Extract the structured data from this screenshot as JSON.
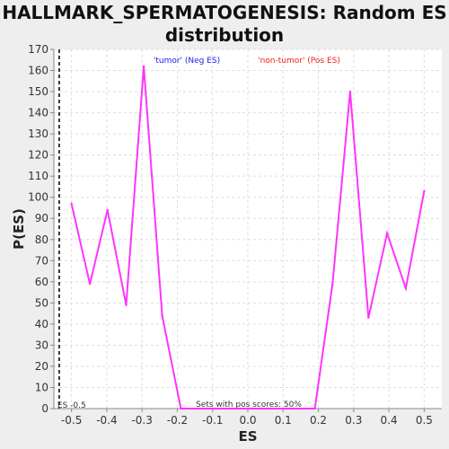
{
  "chart_data": {
    "type": "line",
    "title": "HALLMARK_SPERMATOGENESIS: Random ES\ndistribution",
    "xlabel": "ES",
    "ylabel": "P(ES)",
    "xlim": [
      -0.55,
      0.55
    ],
    "ylim": [
      0,
      170
    ],
    "x_ticks": [
      -0.5,
      -0.4,
      -0.3,
      -0.2,
      -0.1,
      0.0,
      0.1,
      0.2,
      0.3,
      0.4,
      0.5
    ],
    "x_tick_labels": [
      "-0.5",
      "-0.4",
      "-0.3",
      "-0.2",
      "-0.1",
      "0.0",
      "0.1",
      "0.2",
      "0.3",
      "0.4",
      "0.5"
    ],
    "y_ticks": [
      0,
      10,
      20,
      30,
      40,
      50,
      60,
      70,
      80,
      90,
      100,
      110,
      120,
      130,
      140,
      150,
      160,
      170
    ],
    "grid": true,
    "series": [
      {
        "color": "#ff33ff",
        "x": [
          -0.5,
          -0.448,
          -0.398,
          -0.345,
          -0.295,
          -0.243,
          -0.19,
          -0.14,
          -0.09,
          -0.04,
          0.01,
          0.06,
          0.11,
          0.16,
          0.19,
          0.24,
          0.29,
          0.342,
          0.395,
          0.448,
          0.5
        ],
        "y": [
          97,
          59,
          94,
          49,
          162,
          44,
          0,
          0,
          0,
          0,
          0,
          0,
          0,
          0,
          0,
          59,
          150,
          43,
          83,
          57,
          103
        ]
      }
    ],
    "es_line": {
      "x": -0.535,
      "label": "ES -0.5",
      "color": "#333333"
    },
    "annotations": {
      "neg_label": "'tumor' (Neg ES)",
      "neg_color": "#2020ee",
      "pos_label": "'non-tumor' (Pos ES)",
      "pos_color": "#ee2020",
      "bottom_note": "Sets with pos scores: 50%"
    },
    "colors": {
      "plot_background": "#ffffff",
      "page_background": "#eeeeee",
      "grid": "#dddddd",
      "axis": "#888888",
      "tick_text": "#333333"
    }
  }
}
